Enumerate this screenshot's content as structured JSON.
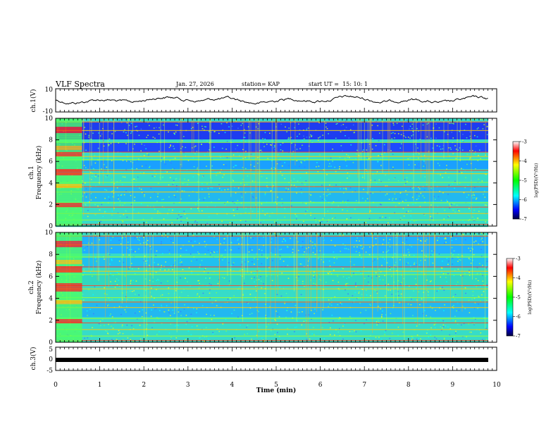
{
  "chart_data": {
    "type": "heatmap",
    "title": "VLF Spectra",
    "date": "Jan. 27, 2026",
    "station": "station= KAP",
    "start": "start UT =  15: 10: 1",
    "x": {
      "label": "Time (min)",
      "range": [
        0,
        10
      ],
      "ticks": [
        "0",
        "1",
        "2",
        "3",
        "4",
        "5",
        "6",
        "7",
        "8",
        "9",
        "10"
      ]
    },
    "panels": [
      {
        "id": "ch1-waveform",
        "type": "line",
        "ylabel": "ch.1(V)",
        "yrange": [
          -10,
          10
        ],
        "ticks": [
          "10",
          "-10"
        ]
      },
      {
        "id": "ch1-spectrogram",
        "type": "heatmap",
        "ylabel": "ch.1 Frequency (kHz)",
        "ylabel_top": "ch.1",
        "ylabel_bottom": "Frequency (kHz)",
        "yrange": [
          0,
          10
        ],
        "ticks": [
          "0",
          "2",
          "4",
          "6",
          "8",
          "10"
        ]
      },
      {
        "id": "ch2-spectrogram",
        "type": "heatmap",
        "ylabel": "ch.2 Frequency (kHz)",
        "ylabel_top": "ch.2",
        "ylabel_bottom": "Frequency (kHz)",
        "yrange": [
          0,
          10
        ],
        "ticks": [
          "0",
          "2",
          "4",
          "6",
          "8",
          "10"
        ]
      },
      {
        "id": "ch3-waveform",
        "type": "line",
        "ylabel": "ch.3(V)",
        "yrange": [
          -5,
          5
        ],
        "ticks": [
          "5",
          "0",
          "-5"
        ]
      }
    ],
    "colorbar": {
      "label": "log(PSD)(V²/Hz)",
      "range": [
        -7,
        -3
      ],
      "ticks": [
        "-3",
        "-4",
        "-5",
        "-6",
        "-7"
      ]
    },
    "colormap": [
      "#7f0000",
      "#ff0000",
      "#ff8000",
      "#ffff00",
      "#80ff80",
      "#00ffff",
      "#0080ff",
      "#0000ff",
      "#00007f"
    ]
  }
}
